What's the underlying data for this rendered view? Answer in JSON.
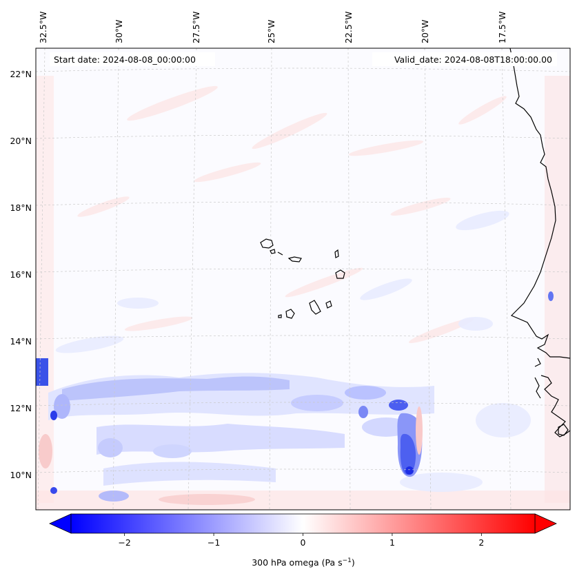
{
  "header": {
    "start_date": "Start date: 2024-08-08_00:00:00",
    "valid_date": "Valid_date: 2024-08-08T18:00:00.00"
  },
  "axes": {
    "lon_labels": [
      "32.5°W",
      "30°W",
      "27.5°W",
      "25°W",
      "22.5°W",
      "20°W",
      "17.5°W"
    ],
    "lon_values": [
      -32.5,
      -30,
      -27.5,
      -25,
      -22.5,
      -20,
      -17.5
    ],
    "lat_labels": [
      "22°N",
      "20°N",
      "18°N",
      "16°N",
      "14°N",
      "12°N",
      "10°N"
    ],
    "lat_values": [
      22,
      20,
      18,
      16,
      14,
      12,
      10
    ],
    "gridlines": true
  },
  "colorbar": {
    "tick_labels": [
      "−2",
      "−1",
      "0",
      "1",
      "2"
    ],
    "tick_values": [
      -2,
      -1,
      0,
      1,
      2
    ],
    "range": [
      -2.6,
      2.6
    ],
    "extend": "both",
    "label_main": "300 hPa omega (Pa s",
    "label_exp": "−1",
    "label_end": ")",
    "colormap": "bwr",
    "color_low": "#0000ff",
    "color_mid": "#ffffff",
    "color_high": "#ff0000"
  },
  "field": {
    "variable": "300 hPa omega",
    "min_shown": -2.6,
    "max_shown": 2.6
  }
}
